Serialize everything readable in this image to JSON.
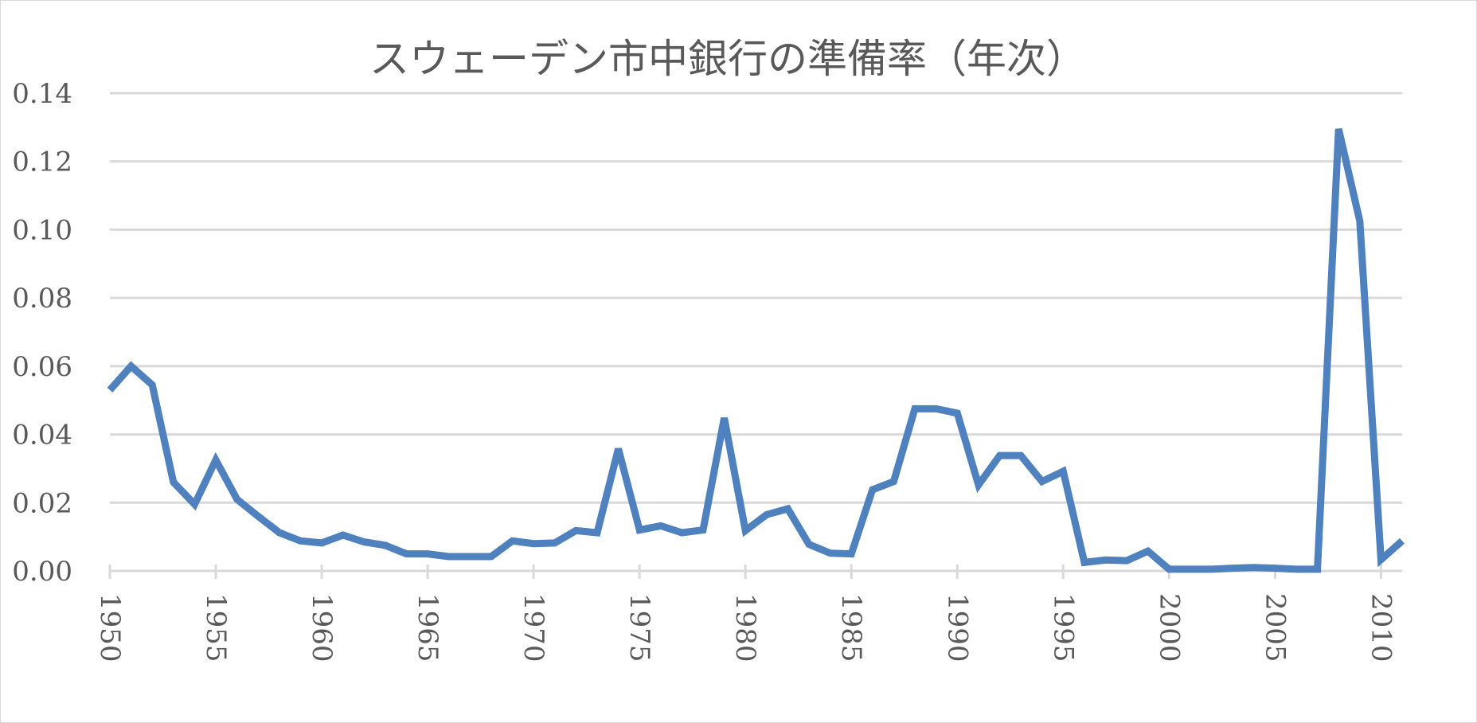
{
  "chart_data": {
    "type": "line",
    "title": "スウェーデン市中銀行の準備率（年次）",
    "xlabel": "",
    "ylabel": "",
    "ylim": [
      0,
      0.14
    ],
    "yticks": [
      "0.00",
      "0.02",
      "0.04",
      "0.06",
      "0.08",
      "0.10",
      "0.12",
      "0.14"
    ],
    "xticks": [
      "1950",
      "1955",
      "1960",
      "1965",
      "1970",
      "1975",
      "1980",
      "1985",
      "1990",
      "1995",
      "2000",
      "2005",
      "2010"
    ],
    "grid": true,
    "legend": "none",
    "line_color": "#4e81bd",
    "x": [
      1950,
      1951,
      1952,
      1953,
      1954,
      1955,
      1956,
      1957,
      1958,
      1959,
      1960,
      1961,
      1962,
      1963,
      1964,
      1965,
      1966,
      1967,
      1968,
      1969,
      1970,
      1971,
      1972,
      1973,
      1974,
      1975,
      1976,
      1977,
      1978,
      1979,
      1980,
      1981,
      1982,
      1983,
      1984,
      1985,
      1986,
      1987,
      1988,
      1989,
      1990,
      1991,
      1992,
      1993,
      1994,
      1995,
      1996,
      1997,
      1998,
      1999,
      2000,
      2001,
      2002,
      2003,
      2004,
      2005,
      2006,
      2007,
      2008,
      2009,
      2010,
      2011
    ],
    "values": [
      0.053,
      0.06,
      0.0545,
      0.026,
      0.0195,
      0.0325,
      0.021,
      0.016,
      0.0112,
      0.0088,
      0.0082,
      0.0105,
      0.0085,
      0.0075,
      0.005,
      0.005,
      0.0042,
      0.0042,
      0.0042,
      0.0088,
      0.008,
      0.0082,
      0.0118,
      0.0112,
      0.0358,
      0.012,
      0.0132,
      0.0112,
      0.012,
      0.0448,
      0.0118,
      0.0165,
      0.0182,
      0.0078,
      0.0052,
      0.005,
      0.0238,
      0.0262,
      0.0475,
      0.0475,
      0.0462,
      0.0252,
      0.0338,
      0.0338,
      0.0262,
      0.0292,
      0.0025,
      0.0032,
      0.003,
      0.0058,
      0.0005,
      0.0005,
      0.0005,
      0.0008,
      0.001,
      0.0008,
      0.0005,
      0.0005,
      0.1295,
      0.1025,
      0.0033,
      0.0088
    ]
  }
}
